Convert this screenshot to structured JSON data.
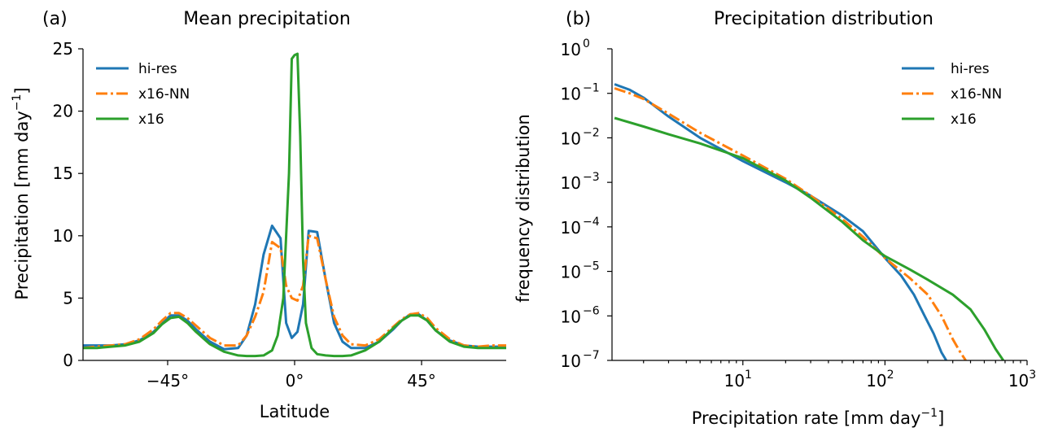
{
  "colors": {
    "hi_res": "#1f77b4",
    "x16_nn": "#ff7f0e",
    "x16": "#2ca02c"
  },
  "chart_data": [
    {
      "type": "line",
      "panel_label": "(a)",
      "title": "Mean precipitation",
      "xlabel": "Latitude",
      "ylabel": "Precipitation [mm day",
      "ylabel_sup": "−1",
      "ylabel_close": "]",
      "xlim": [
        -75,
        75
      ],
      "ylim": [
        0,
        25
      ],
      "xticks": [
        -45,
        0,
        45
      ],
      "xtick_labels": [
        "−45°",
        "0°",
        "45°"
      ],
      "yticks": [
        0,
        5,
        10,
        15,
        20,
        25
      ],
      "ytick_labels": [
        "0",
        "5",
        "10",
        "15",
        "20",
        "25"
      ],
      "legend_position": "upper-left",
      "series": [
        {
          "name": "hi-res",
          "style": "solid",
          "color_key": "hi_res",
          "x": [
            -75,
            -70,
            -65,
            -60,
            -55,
            -50,
            -47,
            -44,
            -41,
            -38,
            -35,
            -30,
            -25,
            -20,
            -17,
            -14,
            -11,
            -8,
            -5,
            -3,
            -1,
            1,
            3,
            5,
            8,
            11,
            14,
            17,
            20,
            25,
            30,
            35,
            38,
            41,
            44,
            47,
            50,
            55,
            60,
            65,
            70,
            75
          ],
          "y": [
            1.2,
            1.2,
            1.2,
            1.3,
            1.6,
            2.3,
            3.0,
            3.6,
            3.6,
            3.2,
            2.5,
            1.5,
            0.9,
            1.0,
            2.0,
            4.5,
            8.5,
            10.8,
            9.8,
            3.0,
            1.8,
            2.3,
            4.5,
            10.4,
            10.3,
            6.5,
            3.0,
            1.5,
            1.0,
            1.0,
            1.5,
            2.5,
            3.2,
            3.7,
            3.7,
            3.2,
            2.4,
            1.6,
            1.2,
            1.1,
            1.1,
            1.1
          ]
        },
        {
          "name": "x16-NN",
          "style": "dashdot",
          "color_key": "x16_nn",
          "x": [
            -75,
            -70,
            -65,
            -60,
            -55,
            -50,
            -47,
            -44,
            -41,
            -38,
            -35,
            -30,
            -25,
            -20,
            -17,
            -14,
            -11,
            -8,
            -5,
            -3,
            -1,
            1,
            3,
            5,
            8,
            11,
            14,
            17,
            20,
            25,
            30,
            35,
            38,
            41,
            44,
            47,
            50,
            55,
            60,
            65,
            70,
            75
          ],
          "y": [
            1.0,
            1.1,
            1.2,
            1.3,
            1.7,
            2.5,
            3.2,
            3.8,
            3.8,
            3.4,
            2.8,
            1.8,
            1.2,
            1.2,
            2.0,
            3.5,
            5.5,
            9.5,
            9.0,
            6.0,
            5.0,
            4.8,
            6.0,
            10.0,
            9.8,
            6.5,
            3.5,
            2.0,
            1.3,
            1.2,
            1.7,
            2.7,
            3.3,
            3.7,
            3.8,
            3.4,
            2.6,
            1.7,
            1.2,
            1.1,
            1.2,
            1.2
          ]
        },
        {
          "name": "x16",
          "style": "solid",
          "color_key": "x16",
          "x": [
            -75,
            -70,
            -65,
            -60,
            -55,
            -50,
            -47,
            -44,
            -41,
            -38,
            -35,
            -30,
            -25,
            -20,
            -17,
            -14,
            -11,
            -8,
            -6,
            -4,
            -2,
            -1,
            0,
            1,
            2,
            3,
            4,
            6,
            8,
            11,
            14,
            17,
            20,
            25,
            30,
            35,
            38,
            41,
            44,
            47,
            50,
            55,
            60,
            65,
            70,
            75
          ],
          "y": [
            1.0,
            1.0,
            1.1,
            1.2,
            1.5,
            2.2,
            2.9,
            3.4,
            3.5,
            3.0,
            2.3,
            1.3,
            0.7,
            0.4,
            0.35,
            0.35,
            0.4,
            0.8,
            2.0,
            5.0,
            15.0,
            24.2,
            24.5,
            24.6,
            18.0,
            8.0,
            3.0,
            1.0,
            0.5,
            0.4,
            0.35,
            0.35,
            0.4,
            0.8,
            1.5,
            2.6,
            3.2,
            3.6,
            3.6,
            3.2,
            2.4,
            1.5,
            1.1,
            1.0,
            1.0,
            1.0
          ]
        }
      ]
    },
    {
      "type": "line",
      "panel_label": "(b)",
      "title": "Precipitation distribution",
      "xlabel": "Precipitation rate [mm day",
      "xlabel_sup": "−1",
      "xlabel_close": "]",
      "ylabel": "frequency distribution",
      "xscale": "log",
      "yscale": "log",
      "xlim": [
        1.2,
        1000
      ],
      "ylim": [
        1e-07,
        1
      ],
      "xticks": [
        10,
        100,
        1000
      ],
      "xtick_exponents": [
        "1",
        "2",
        "3"
      ],
      "yticks": [
        1e-07,
        1e-06,
        1e-05,
        0.0001,
        0.001,
        0.01,
        0.1,
        1
      ],
      "ytick_exponents": [
        "−7",
        "−6",
        "−5",
        "−4",
        "−3",
        "−2",
        "−1",
        "0"
      ],
      "tick_base": "10",
      "legend_position": "upper-right",
      "series": [
        {
          "name": "hi-res",
          "style": "solid",
          "color_key": "hi_res",
          "x": [
            1.25,
            1.6,
            2,
            3,
            5,
            10,
            20,
            30,
            50,
            70,
            100,
            130,
            160,
            190,
            220,
            250,
            270
          ],
          "y": [
            0.16,
            0.12,
            0.08,
            0.03,
            0.01,
            0.003,
            0.001,
            0.0005,
            0.00018,
            8e-05,
            2e-05,
            8e-06,
            3e-06,
            1e-06,
            4e-07,
            1.5e-07,
            1e-07
          ]
        },
        {
          "name": "x16-NN",
          "style": "dashdot",
          "color_key": "x16_nn",
          "x": [
            1.25,
            1.6,
            2,
            3,
            5,
            10,
            20,
            30,
            50,
            70,
            100,
            150,
            200,
            250,
            300,
            340,
            370
          ],
          "y": [
            0.13,
            0.1,
            0.075,
            0.035,
            0.013,
            0.004,
            0.0012,
            0.0005,
            0.00015,
            6e-05,
            2e-05,
            7e-06,
            3e-06,
            1e-06,
            3e-07,
            1.5e-07,
            1e-07
          ]
        },
        {
          "name": "x16",
          "style": "solid",
          "color_key": "x16",
          "x": [
            1.25,
            2,
            3,
            5,
            10,
            20,
            30,
            50,
            70,
            100,
            150,
            200,
            300,
            400,
            500,
            600,
            680
          ],
          "y": [
            0.028,
            0.018,
            0.012,
            0.0075,
            0.0035,
            0.0011,
            0.00045,
            0.00013,
            5e-05,
            2.2e-05,
            1.1e-05,
            6.5e-06,
            3e-06,
            1.4e-06,
            5e-07,
            1.8e-07,
            1e-07
          ]
        }
      ]
    }
  ]
}
